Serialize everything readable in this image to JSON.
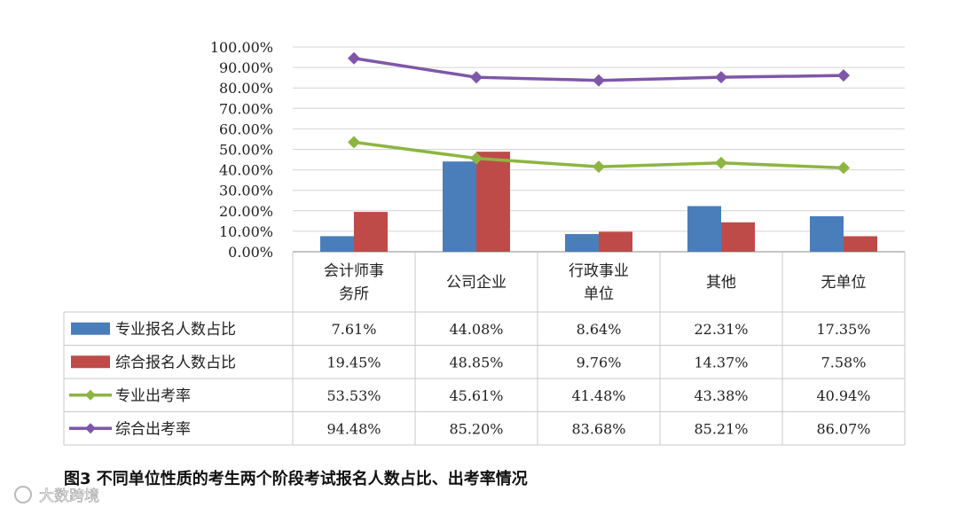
{
  "chart_data": {
    "type": "bar",
    "categories": [
      [
        "会计师事",
        "务所"
      ],
      [
        "公司企业"
      ],
      [
        "行政事业",
        "单位"
      ],
      [
        "其他"
      ],
      [
        "无单位"
      ]
    ],
    "y_ticks": [
      "100.00%",
      "90.00%",
      "80.00%",
      "70.00%",
      "60.00%",
      "50.00%",
      "40.00%",
      "30.00%",
      "20.00%",
      "10.00%",
      "0.00%"
    ],
    "ylim": [
      0,
      100
    ],
    "grid": true,
    "series": [
      {
        "name": "专业报名人数占比",
        "kind": "bar",
        "color": "#4a7ebb",
        "values": [
          7.61,
          44.08,
          8.64,
          22.31,
          17.35
        ],
        "labels": [
          "7.61%",
          "44.08%",
          "8.64%",
          "22.31%",
          "17.35%"
        ]
      },
      {
        "name": "综合报名人数占比",
        "kind": "bar",
        "color": "#be4b48",
        "values": [
          19.45,
          48.85,
          9.76,
          14.37,
          7.58
        ],
        "labels": [
          "19.45%",
          "48.85%",
          "9.76%",
          "14.37%",
          "7.58%"
        ]
      },
      {
        "name": "专业出考率",
        "kind": "line",
        "color": "#8db542",
        "values": [
          53.53,
          45.61,
          41.48,
          43.38,
          40.94
        ],
        "labels": [
          "53.53%",
          "45.61%",
          "41.48%",
          "43.38%",
          "40.94%"
        ]
      },
      {
        "name": "综合出考率",
        "kind": "line",
        "color": "#7e57a8",
        "values": [
          94.48,
          85.2,
          83.68,
          85.21,
          86.07
        ],
        "labels": [
          "94.48%",
          "85.20%",
          "83.68%",
          "85.21%",
          "86.07%"
        ]
      }
    ],
    "caption": "图3  不同单位性质的考生两个阶段考试报名人数占比、出考率情况"
  },
  "watermark": "大数跨境"
}
